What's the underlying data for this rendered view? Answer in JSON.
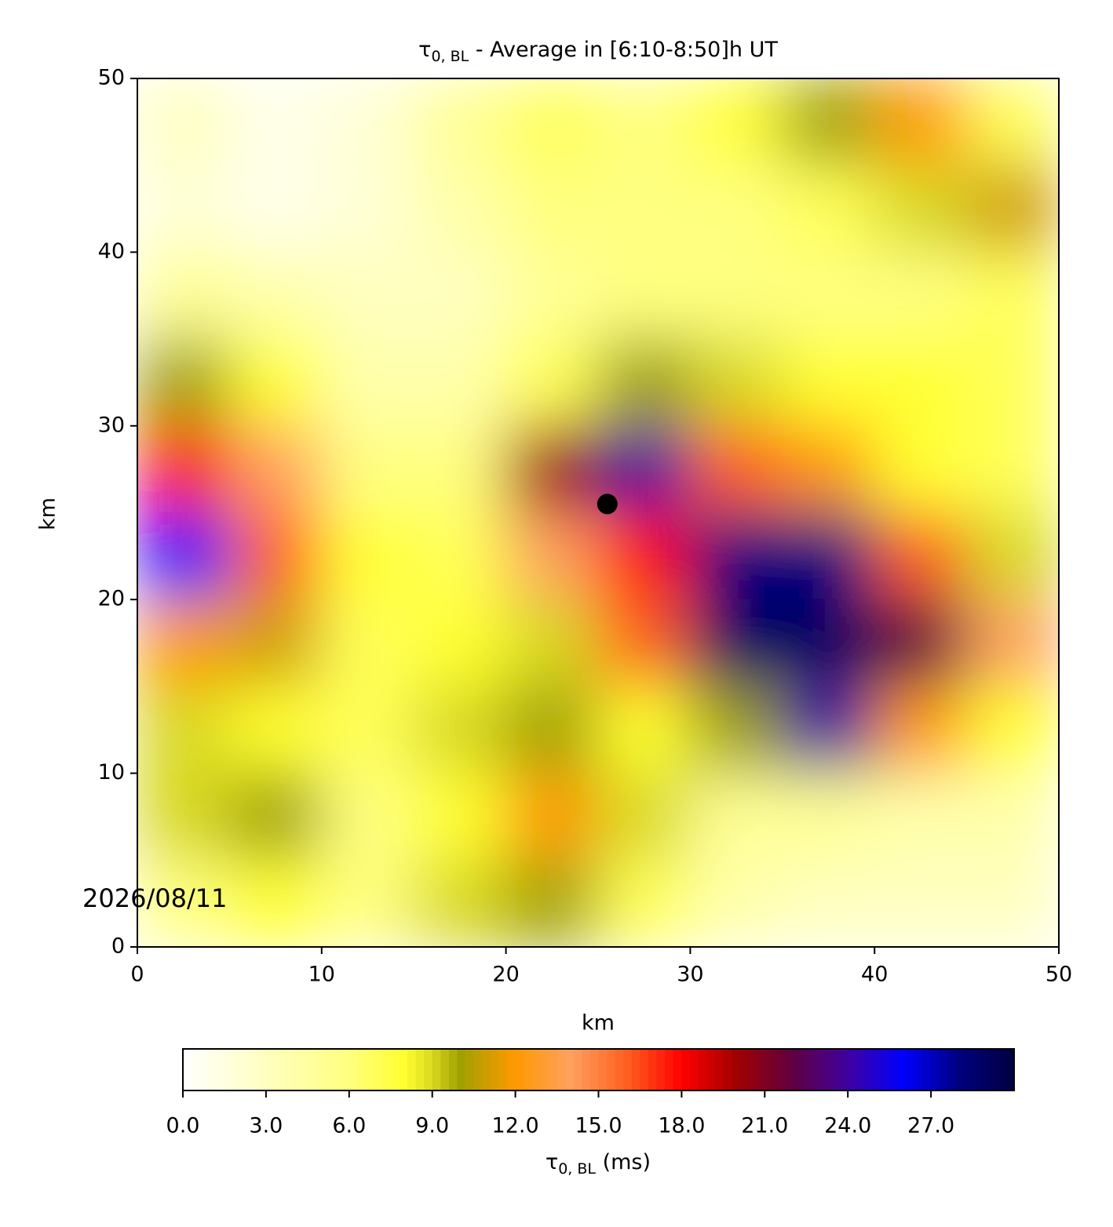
{
  "chart_data": {
    "type": "heatmap",
    "title": {
      "symbol": "τ",
      "subscript": "0, BL",
      "text": " - Average in [6:10-8:50]h UT"
    },
    "xlabel": "km",
    "ylabel": "km",
    "xlim": [
      0,
      50
    ],
    "ylim": [
      0,
      50
    ],
    "xticks": [
      0,
      10,
      20,
      30,
      40,
      50
    ],
    "yticks": [
      0,
      10,
      20,
      30,
      40,
      50
    ],
    "x_bins": [
      0,
      5,
      10,
      15,
      20,
      25,
      30,
      35,
      40,
      45,
      50
    ],
    "y_bins": [
      50,
      45,
      40,
      35,
      30,
      25,
      20,
      15,
      10,
      5,
      0
    ],
    "z": [
      [
        3,
        1,
        2,
        5,
        7,
        6,
        8,
        10,
        12,
        7
      ],
      [
        2,
        1,
        2,
        4,
        6,
        6,
        6,
        7,
        9,
        11
      ],
      [
        5,
        4,
        3,
        3,
        5,
        6,
        6,
        6,
        6,
        7
      ],
      [
        10,
        8,
        4,
        4,
        7,
        10,
        9,
        8,
        8,
        7
      ],
      [
        18,
        14,
        6,
        6,
        20,
        24,
        16,
        12,
        8,
        7
      ],
      [
        26,
        16,
        8,
        7,
        14,
        18,
        28,
        28,
        16,
        9
      ],
      [
        12,
        11,
        7,
        8,
        9,
        16,
        29,
        29,
        22,
        14
      ],
      [
        9,
        8,
        7,
        9,
        10,
        8,
        10,
        24,
        12,
        8
      ],
      [
        9,
        10,
        6,
        8,
        12,
        9,
        5,
        5,
        4,
        4
      ],
      [
        6,
        8,
        6,
        9,
        10,
        7,
        4,
        3,
        3,
        3
      ]
    ],
    "marker": {
      "x": 25.5,
      "y": 25.5,
      "color": "#000000"
    },
    "colorbar": {
      "lim": [
        0,
        30
      ],
      "ticks": [
        {
          "value": 0,
          "label": "0.0"
        },
        {
          "value": 3,
          "label": "3.0"
        },
        {
          "value": 6,
          "label": "6.0"
        },
        {
          "value": 9,
          "label": "9.0"
        },
        {
          "value": 12,
          "label": "12.0"
        },
        {
          "value": 15,
          "label": "15.0"
        },
        {
          "value": 18,
          "label": "18.0"
        },
        {
          "value": 21,
          "label": "21.0"
        },
        {
          "value": 24,
          "label": "24.0"
        },
        {
          "value": 27,
          "label": "27.0"
        }
      ],
      "label": {
        "symbol": "τ",
        "subscript": "0, BL",
        "text": " (ms)"
      },
      "colormap": [
        [
          0,
          "#ffffff"
        ],
        [
          3,
          "#ffffc0"
        ],
        [
          6,
          "#ffff80"
        ],
        [
          8,
          "#ffff30"
        ],
        [
          9,
          "#d8d820"
        ],
        [
          10,
          "#a0a000"
        ],
        [
          12,
          "#ff9900"
        ],
        [
          14,
          "#ffa060"
        ],
        [
          16,
          "#ff6020"
        ],
        [
          18,
          "#ff0000"
        ],
        [
          20,
          "#a00000"
        ],
        [
          22,
          "#600040"
        ],
        [
          24,
          "#4000a0"
        ],
        [
          26,
          "#0000ff"
        ],
        [
          28,
          "#000080"
        ],
        [
          30,
          "#000040"
        ]
      ]
    },
    "date": "2026/08/11"
  }
}
